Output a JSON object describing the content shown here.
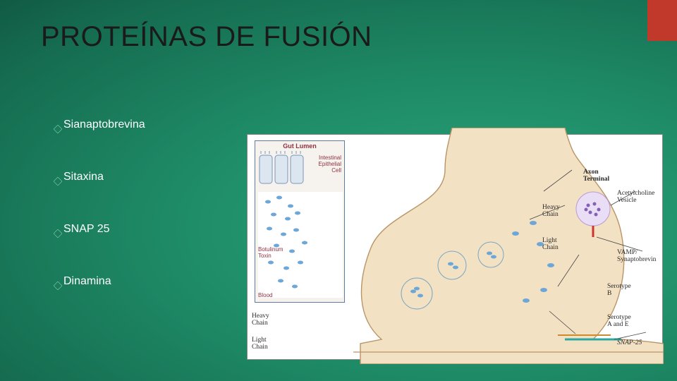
{
  "slide": {
    "title": "PROTEÍNAS DE FUSIÓN",
    "bullet_color": "#1f7a5a",
    "bullet_glow": "#6fd8ae",
    "text_color": "#ffffff",
    "accent_color": "#c0392b",
    "bg_gradient": [
      "#2aa57a",
      "#1f8d68",
      "#156b4f",
      "#0c4434",
      "#072d22"
    ],
    "items": [
      {
        "label": "Sianaptobrevina"
      },
      {
        "label": "Sitaxina"
      },
      {
        "label": "SNAP 25"
      },
      {
        "label": "Dinamina"
      }
    ]
  },
  "diagram": {
    "type": "infographic",
    "background": "#ffffff",
    "border": "#888888",
    "axon_fill": "#f3e1c4",
    "axon_stroke": "#b89466",
    "gut_panel": {
      "title": "Gut Lumen",
      "epithelial": "Intestinal\nEpithelial\nCell",
      "toxin": "Botulinum\nToxin",
      "blood": "Blood",
      "border": "#5b7ca8",
      "bg": "#f6f3ee",
      "text_color": "#903040"
    },
    "toxin_blob_color": "#6da6d9",
    "vesicle_stroke": "#7aa6c2",
    "acetyl_vesicle_fill": "#b08fd1",
    "labels": {
      "axon_terminal": "Axon\nTerminal",
      "heavy_chain": "Heavy\nChain",
      "light_chain": "Light\nChain",
      "heavy_chain2": "Heavy\nChain",
      "light_chain2": "Light\nChain",
      "acetyl": "Acetylcholine\nVesicle",
      "serotype_b": "Serotype\nB",
      "serotype_ae": "Serotype\nA and E",
      "vamp": "VAMP/\nSynaptobrevin",
      "snap25": "SNAP-25"
    },
    "label_color": "#2b2b2b",
    "label_fontsize": 9.5,
    "snap25_line_color": "#2aa8a0",
    "syntaxin_line_color": "#cc8a30"
  }
}
